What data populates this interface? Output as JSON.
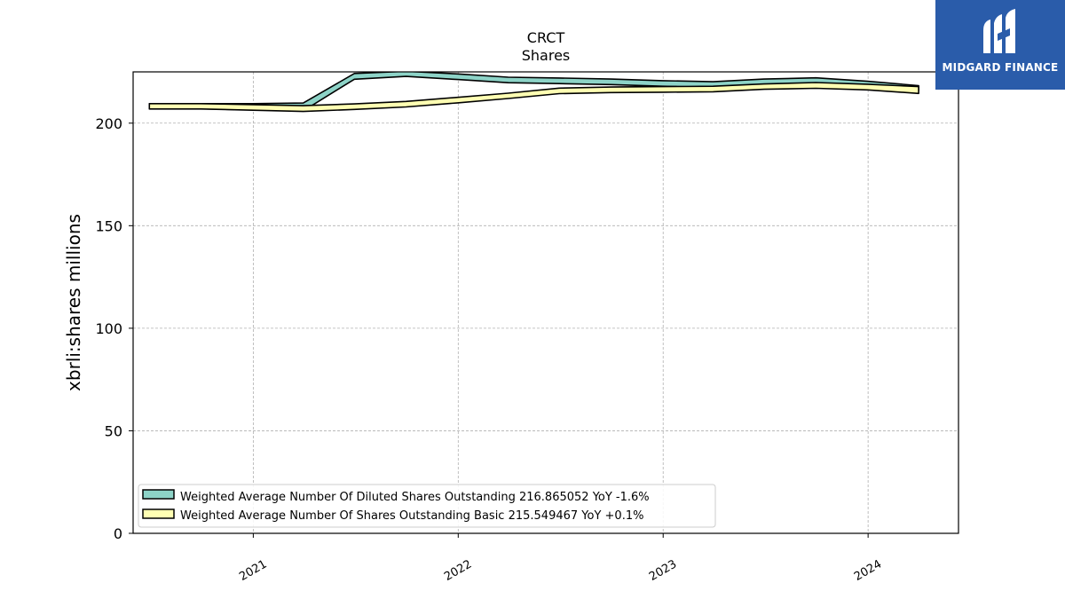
{
  "logo": {
    "text": "MIDGARD FINANCE",
    "color": "#2a5caa"
  },
  "chart_data": {
    "type": "area",
    "title": "CRCT",
    "subtitle": "Shares",
    "ylabel": "xbrli:shares millions",
    "xlabel": "",
    "ylim": [
      0,
      225
    ],
    "yticks": [
      0,
      50,
      100,
      150,
      200
    ],
    "xlim": [
      "2020-06-01",
      "2024-06-10"
    ],
    "xticks": [
      {
        "date": "2021-01-01",
        "label": "2021"
      },
      {
        "date": "2022-01-01",
        "label": "2022"
      },
      {
        "date": "2023-01-01",
        "label": "2023"
      },
      {
        "date": "2024-01-01",
        "label": "2024"
      }
    ],
    "grid": true,
    "legend_position": "lower-left",
    "series": [
      {
        "name": "Weighted Average Number Of Diluted Shares Outstanding",
        "legend_label": "Weighted Average Number Of Diluted Shares Outstanding  216.865052 YoY -1.6%",
        "fill_color": "#8dd3c7",
        "x": [
          "2020-06-30",
          "2020-09-30",
          "2020-12-31",
          "2021-03-31",
          "2021-06-30",
          "2021-09-30",
          "2021-12-31",
          "2022-03-31",
          "2022-06-30",
          "2022-09-30",
          "2022-12-31",
          "2023-03-31",
          "2023-06-30",
          "2023-09-30",
          "2023-12-31",
          "2024-03-31"
        ],
        "upper": [
          209.5,
          209.5,
          209.5,
          209.8,
          224.2,
          225.3,
          224.0,
          222.4,
          222.0,
          221.5,
          220.7,
          220.2,
          221.5,
          222.1,
          220.4,
          218.3
        ],
        "lower": [
          207.0,
          207.0,
          206.5,
          206.0,
          221.4,
          222.8,
          221.3,
          219.7,
          219.3,
          218.8,
          218.0,
          217.5,
          218.8,
          219.4,
          217.6,
          216.0
        ]
      },
      {
        "name": "Weighted Average Number Of Shares Outstanding Basic",
        "legend_label": "Weighted Average Number Of Shares Outstanding Basic  215.549467 YoY +0.1%",
        "fill_color": "#ffffb3",
        "x": [
          "2020-06-30",
          "2020-09-30",
          "2020-12-31",
          "2021-03-31",
          "2021-06-30",
          "2021-09-30",
          "2021-12-31",
          "2022-03-31",
          "2022-06-30",
          "2022-09-30",
          "2022-12-31",
          "2023-03-31",
          "2023-06-30",
          "2023-09-30",
          "2023-12-31",
          "2024-03-31"
        ],
        "upper": [
          209.5,
          209.5,
          209.0,
          208.5,
          209.4,
          210.6,
          212.6,
          214.6,
          217.1,
          217.6,
          217.8,
          218.0,
          219.1,
          219.8,
          219.0,
          217.8
        ],
        "lower": [
          206.9,
          206.9,
          206.3,
          205.7,
          206.7,
          207.9,
          209.9,
          212.0,
          214.4,
          214.9,
          215.1,
          215.3,
          216.5,
          217.0,
          216.2,
          214.5
        ]
      }
    ]
  }
}
